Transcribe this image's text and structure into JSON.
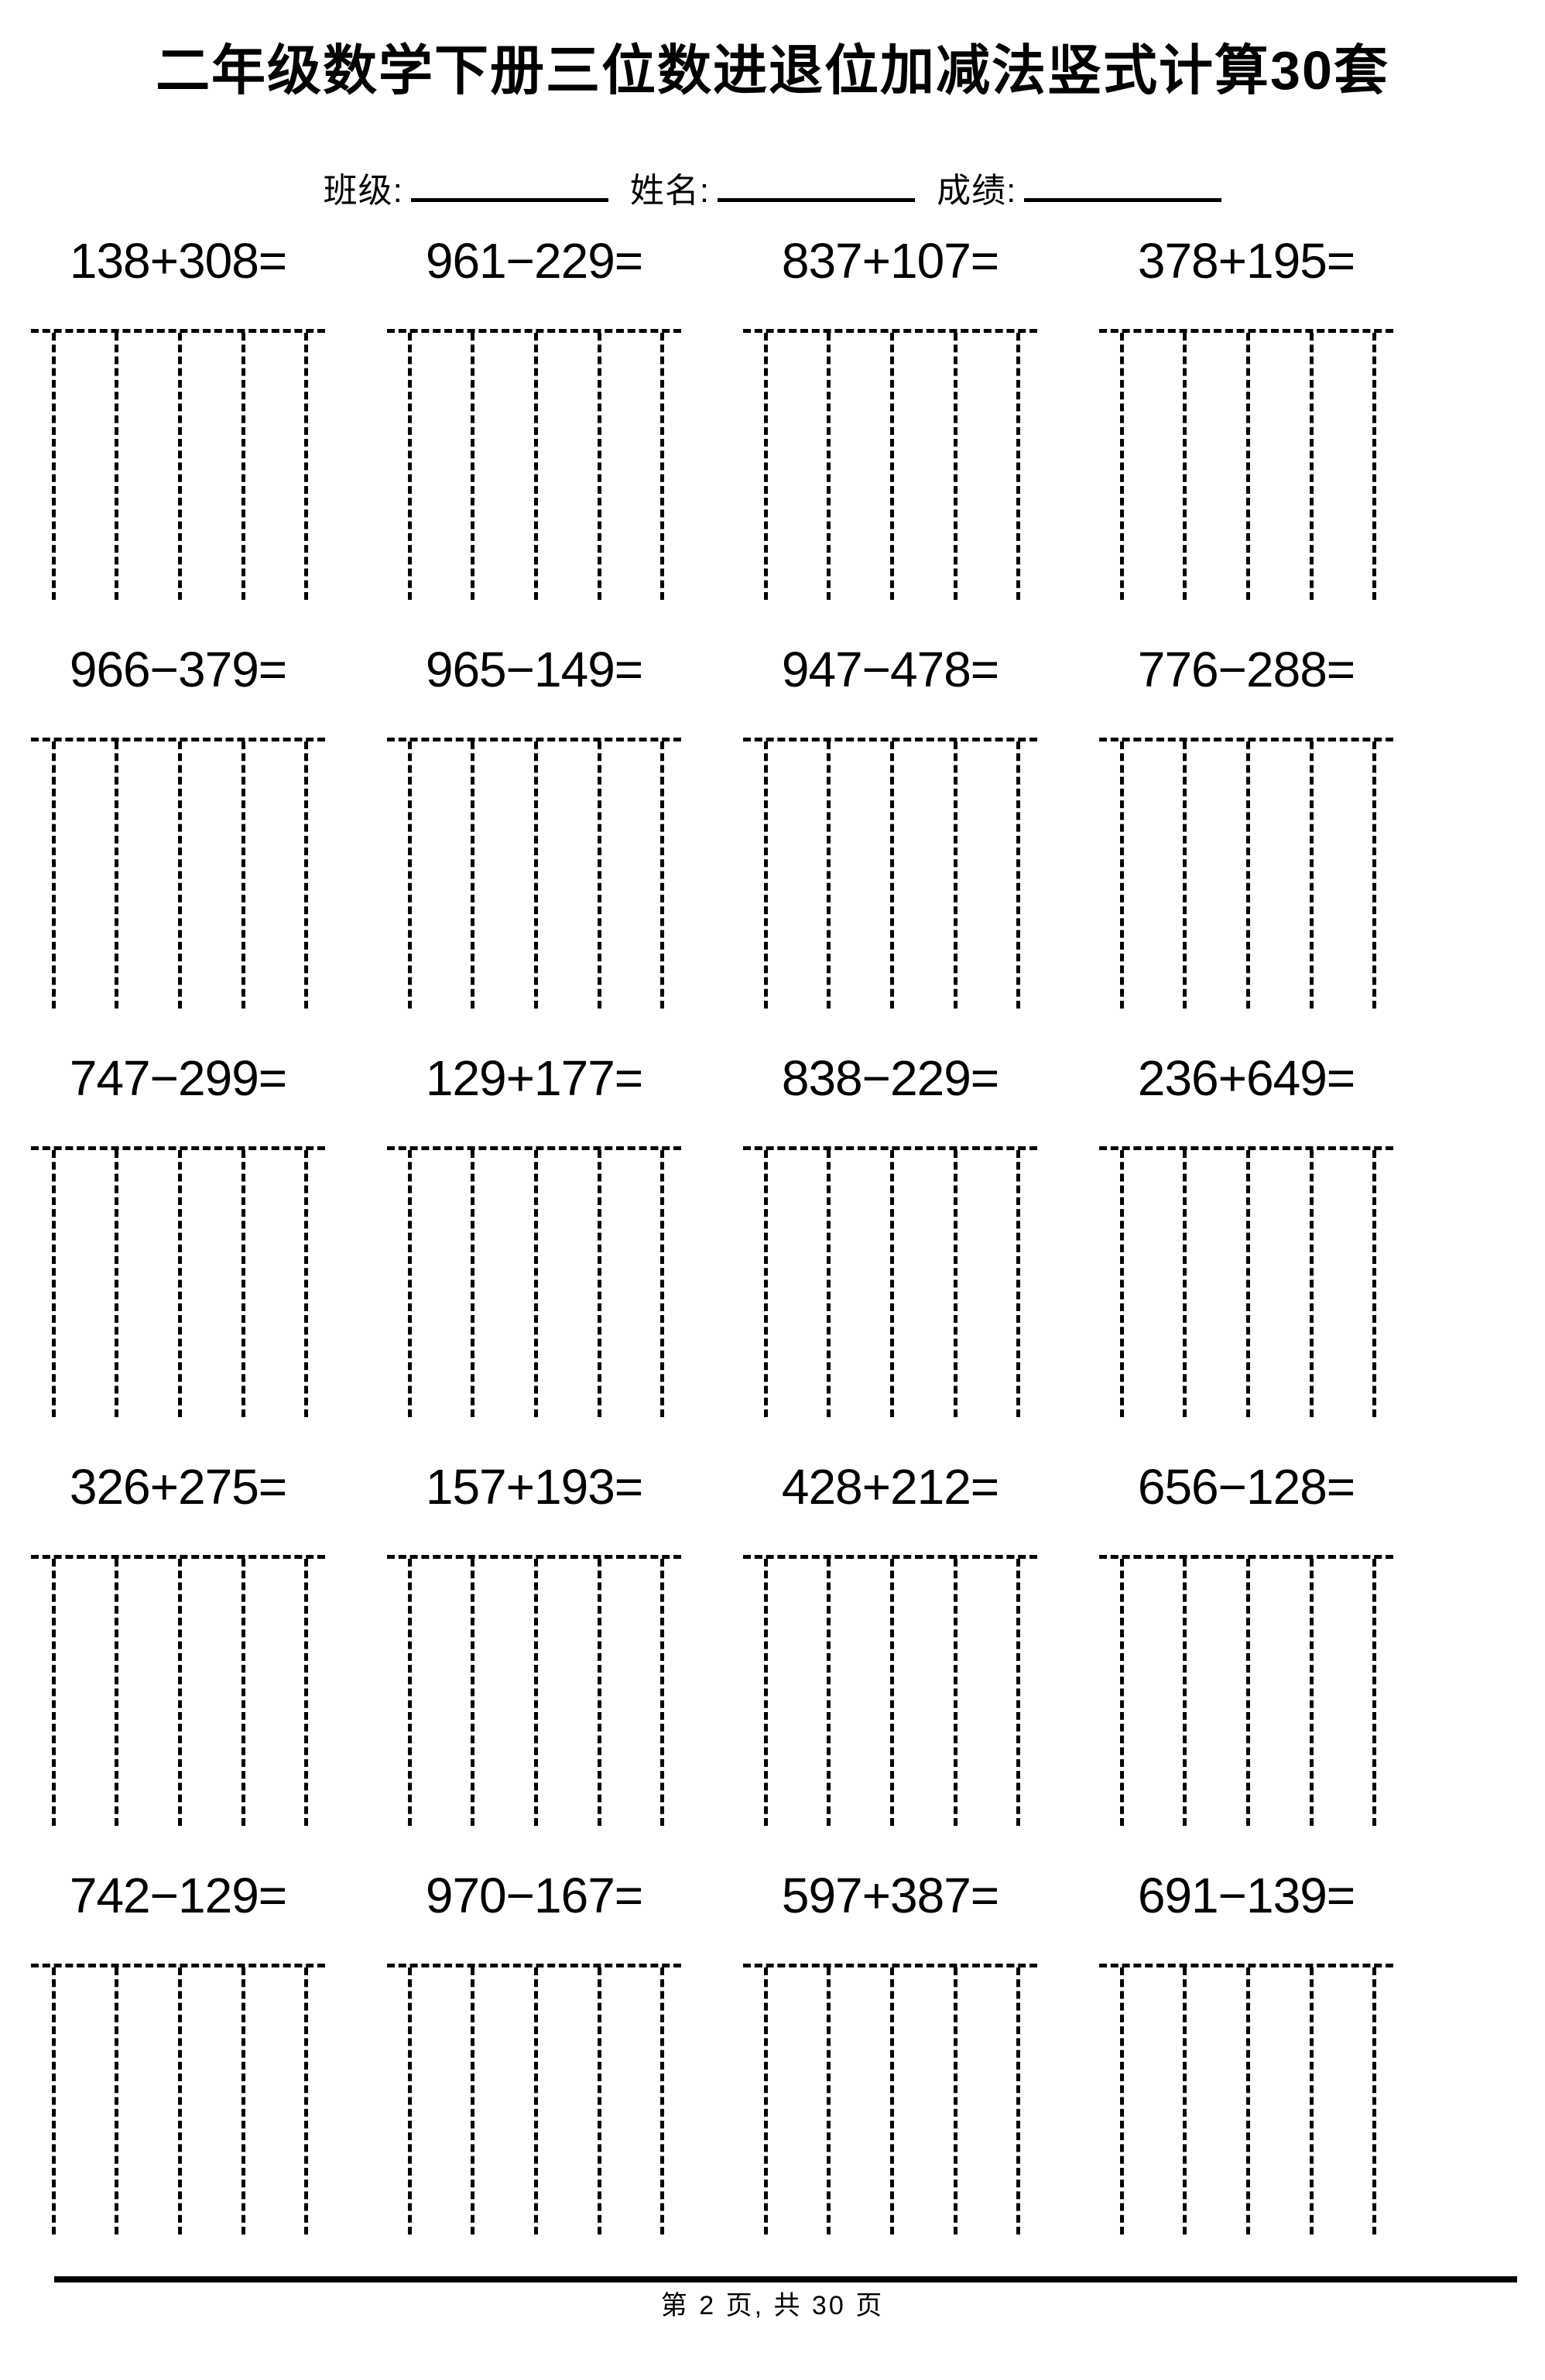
{
  "title": "二年级数学下册三位数进退位加减法竖式计算30套",
  "header": {
    "class_label": "班级:",
    "name_label": "姓名:",
    "score_label": "成绩:"
  },
  "rows": [
    {
      "problems": [
        "138+308=",
        "961−229=",
        "837+107=",
        "378+195="
      ]
    },
    {
      "problems": [
        "966−379=",
        "965−149=",
        "947−478=",
        "776−288="
      ]
    },
    {
      "problems": [
        "747−299=",
        "129+177=",
        "838−229=",
        "236+649="
      ]
    },
    {
      "problems": [
        "326+275=",
        "157+193=",
        "428+212=",
        "656−128="
      ]
    },
    {
      "problems": [
        "742−129=",
        "970−167=",
        "597+387=",
        "691−139="
      ]
    }
  ],
  "footer": {
    "page_text": "第 2 页, 共 30 页"
  },
  "colors": {
    "ink": "#000000",
    "background": "#ffffff"
  },
  "grid": {
    "columns_per_box": 4,
    "boxes_per_row": 4,
    "row_count": 5
  }
}
